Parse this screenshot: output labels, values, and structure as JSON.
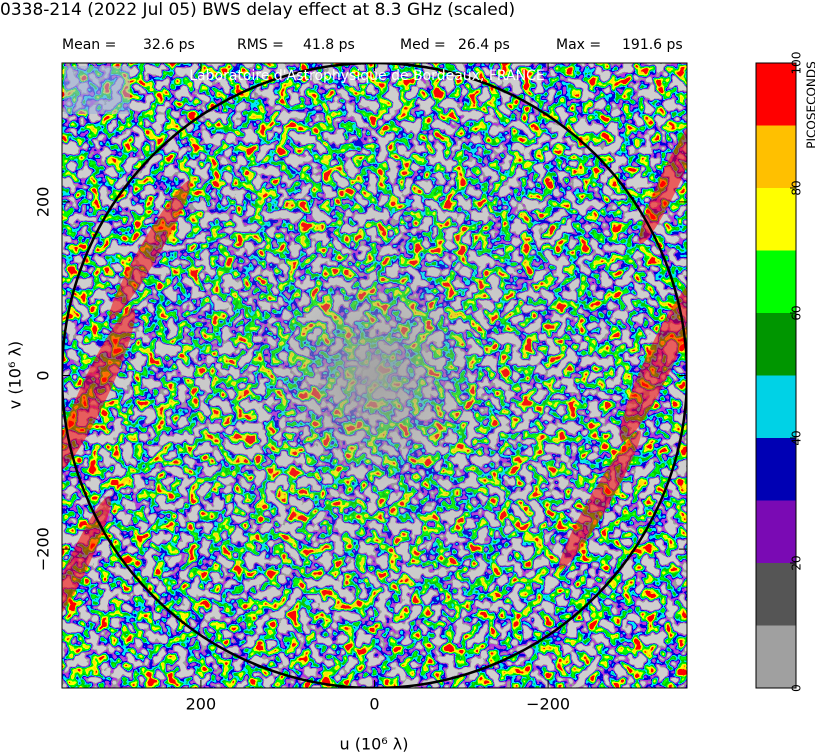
{
  "chart_data": {
    "type": "heatmap",
    "title": "0338-214  (2022 Jul 05)   BWS delay effect at  8.3 GHz (scaled)",
    "stats": [
      [
        "Mean =",
        "32.6 ps"
      ],
      [
        "RMS =",
        "41.8 ps"
      ],
      [
        "Med =",
        "26.4 ps"
      ],
      [
        "Max =",
        "191.6 ps"
      ]
    ],
    "watermark": "Laboratoire d'Astrophysique de Bordeaux, FRANCE",
    "x_label": "u  (10⁶ λ)",
    "y_label": "v  (10⁶ λ)",
    "xlim": [
      360,
      -360
    ],
    "ylim": [
      -360,
      360
    ],
    "xticks": [
      200,
      0,
      {
        "value": -200,
        "label": "−200"
      }
    ],
    "yticks": [
      {
        "value": -200,
        "label": "−200"
      },
      0,
      200
    ],
    "colorbar": {
      "label": "PICOSECONDS",
      "lim": [
        0,
        100
      ],
      "ticks": [
        0,
        20,
        40,
        60,
        80,
        100
      ],
      "colors": [
        "#a0a0a0",
        "#555555",
        "#7a0ab4",
        "#0000b4",
        "#00d2e6",
        "#009600",
        "#00ff00",
        "#ffff00",
        "#ffc000",
        "#ff0000"
      ]
    }
  }
}
